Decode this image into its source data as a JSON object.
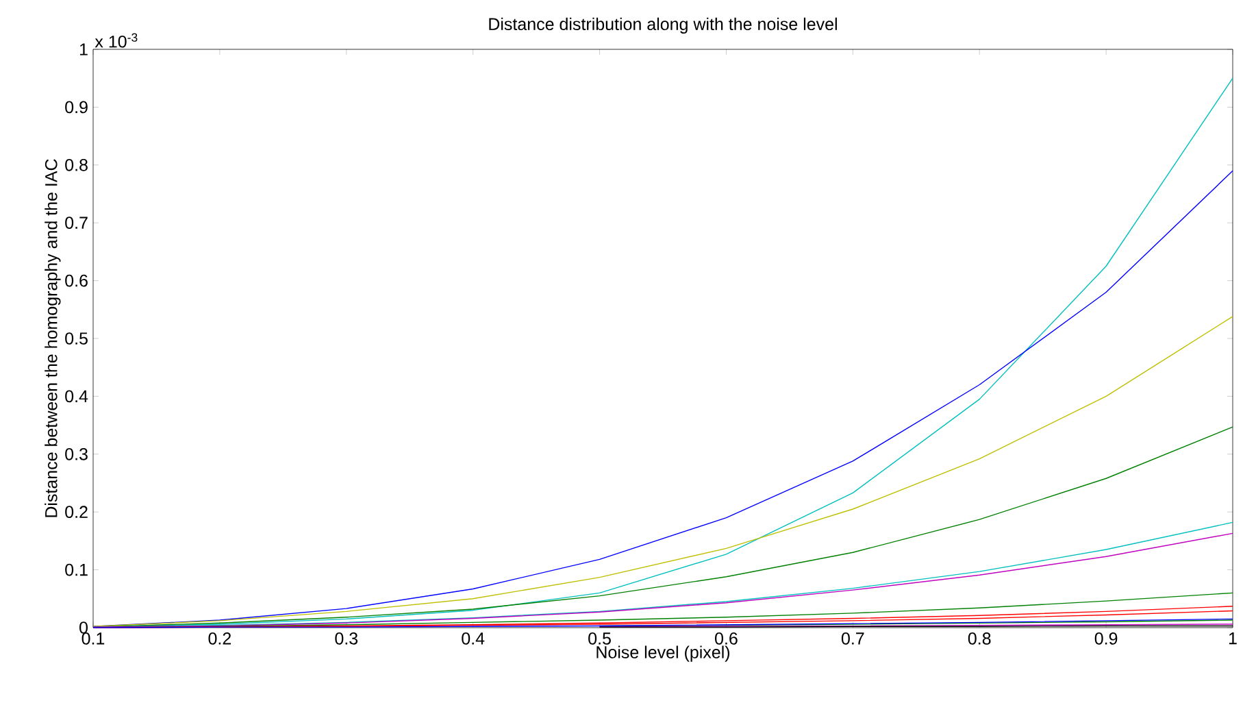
{
  "chart_data": {
    "type": "line",
    "title": "Distance distribution along with the noise level",
    "xlabel": "Noise level (pixel)",
    "ylabel": "Distance between the homography and the IAC",
    "annotations": [
      "x 10$^{-3}$"
    ],
    "x": [
      0.1,
      0.2,
      0.3,
      0.4,
      0.5,
      0.6,
      0.7,
      0.8,
      0.9,
      1.0
    ],
    "xlim": [
      0.1,
      1.0
    ],
    "xticks": [
      0.1,
      0.2,
      0.3,
      0.4,
      0.5,
      0.6,
      0.7,
      0.8,
      0.9,
      1
    ],
    "ylim": [
      0,
      1
    ],
    "yticks": [
      0,
      0.1,
      0.2,
      0.3,
      0.4,
      0.5,
      0.6,
      0.7,
      0.8,
      0.9,
      1
    ],
    "grid": false,
    "line_style": "solid",
    "marker": "none",
    "series": [
      {
        "color": "#00bfbf",
        "values": [
          0.001,
          0.006,
          0.015,
          0.03,
          0.06,
          0.127,
          0.233,
          0.395,
          0.625,
          0.95
        ]
      },
      {
        "color": "#0000ff",
        "values": [
          0.002,
          0.013,
          0.033,
          0.067,
          0.118,
          0.19,
          0.288,
          0.42,
          0.58,
          0.79
        ]
      },
      {
        "color": "#bfbf00",
        "values": [
          0.002,
          0.012,
          0.028,
          0.05,
          0.087,
          0.137,
          0.205,
          0.292,
          0.4,
          0.538
        ]
      },
      {
        "color": "#008000",
        "values": [
          0.001,
          0.008,
          0.018,
          0.032,
          0.055,
          0.088,
          0.13,
          0.187,
          0.258,
          0.347
        ]
      },
      {
        "color": "#00bfbf",
        "values": [
          0.001,
          0.004,
          0.009,
          0.017,
          0.028,
          0.045,
          0.068,
          0.097,
          0.135,
          0.182
        ]
      },
      {
        "color": "#bf00bf",
        "values": [
          0.001,
          0.003,
          0.008,
          0.016,
          0.027,
          0.043,
          0.065,
          0.091,
          0.123,
          0.163
        ]
      },
      {
        "color": "#008000",
        "values": [
          0,
          0.002,
          0.005,
          0.009,
          0.013,
          0.018,
          0.025,
          0.034,
          0.046,
          0.06
        ]
      },
      {
        "color": "#ff0000",
        "values": [
          0,
          null,
          0.003,
          0.005,
          0.008,
          0.012,
          0.016,
          0.021,
          0.028,
          0.037
        ]
      },
      {
        "color": "#ff0000",
        "values": [
          0,
          null,
          0.002,
          0.004,
          0.006,
          0.009,
          0.012,
          0.016,
          0.022,
          0.029
        ]
      },
      {
        "color": "#008000",
        "values": [
          null,
          null,
          null,
          null,
          0.003,
          0.004,
          0.006,
          0.008,
          0.01,
          0.013
        ]
      },
      {
        "color": "#bf00bf",
        "values": [
          null,
          null,
          null,
          null,
          0.002,
          0.002,
          0.003,
          0.004,
          0.005,
          0.006
        ]
      },
      {
        "color": "#000000",
        "values": [
          null,
          null,
          null,
          null,
          0.001,
          0.001,
          0.002,
          0.002,
          0.003,
          0.003
        ]
      },
      {
        "color": "#0000ff",
        "values": [
          0,
          0.001,
          0.001,
          0.002,
          0.003,
          0.005,
          0.007,
          0.009,
          0.012,
          0.015
        ]
      }
    ]
  }
}
